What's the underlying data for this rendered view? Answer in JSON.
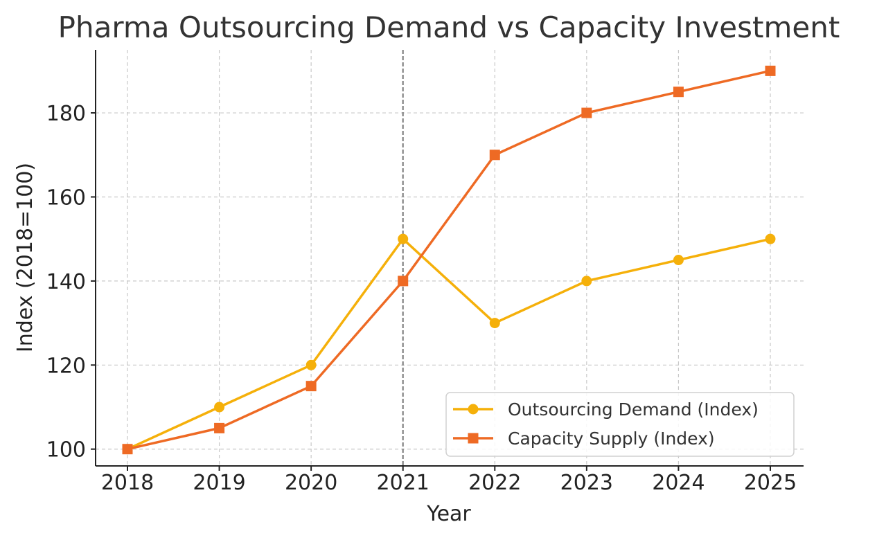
{
  "chart_data": {
    "type": "line",
    "title": "Pharma Outsourcing Demand vs Capacity Investment",
    "xlabel": "Year",
    "ylabel": "Index (2018=100)",
    "categories": [
      "2018",
      "2019",
      "2020",
      "2021",
      "2022",
      "2023",
      "2024",
      "2025"
    ],
    "ylim": [
      96,
      195
    ],
    "yticks": [
      100,
      120,
      140,
      160,
      180
    ],
    "grid": true,
    "legend_position": "lower-right",
    "vline_at": "2021",
    "series": [
      {
        "name": "Outsourcing Demand (Index)",
        "values": [
          100,
          110,
          120,
          150,
          130,
          140,
          145,
          150
        ],
        "color": "#F5B00A",
        "marker": "circle"
      },
      {
        "name": "Capacity Supply (Index)",
        "values": [
          100,
          105,
          115,
          140,
          170,
          180,
          185,
          190
        ],
        "color": "#EE6A24",
        "marker": "square"
      }
    ]
  }
}
